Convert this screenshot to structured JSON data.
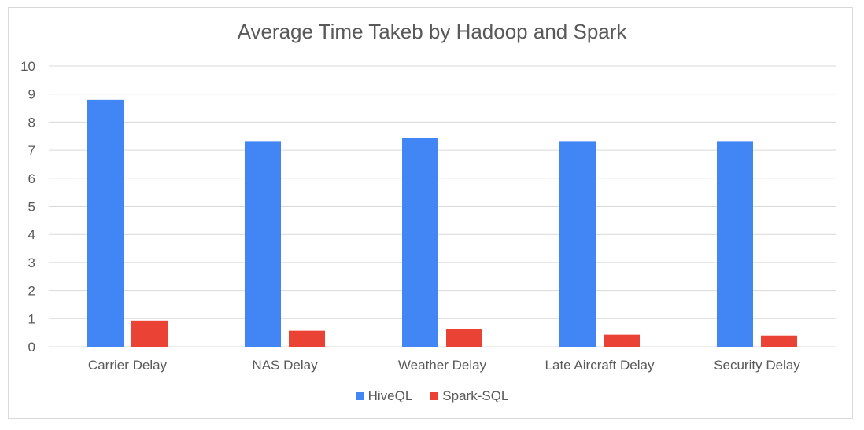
{
  "chart_data": {
    "type": "bar",
    "title": "Average Time Takeb by Hadoop and Spark",
    "categories": [
      "Carrier Delay",
      "NAS Delay",
      "Weather Delay",
      "Late Aircraft Delay",
      "Security Delay"
    ],
    "series": [
      {
        "name": "HiveQL",
        "color": "#4285f4",
        "values": [
          8.8,
          7.3,
          7.43,
          7.3,
          7.3
        ]
      },
      {
        "name": "Spark-SQL",
        "color": "#ea4335",
        "values": [
          0.93,
          0.57,
          0.62,
          0.43,
          0.4
        ]
      }
    ],
    "ylim": [
      0,
      10
    ],
    "yticks": [
      "0",
      "1",
      "2",
      "3",
      "4",
      "5",
      "6",
      "7",
      "8",
      "9",
      "10"
    ],
    "grid": true,
    "legend": "bottom"
  }
}
